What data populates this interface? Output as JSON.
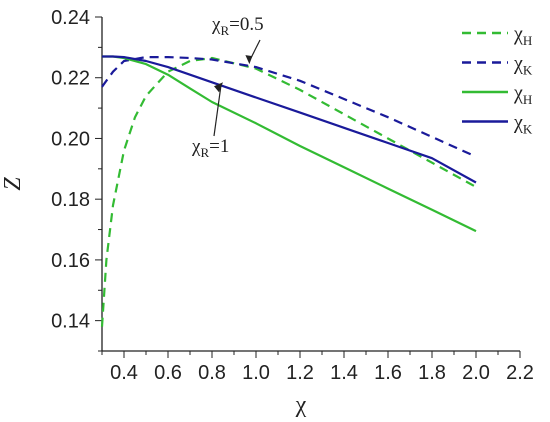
{
  "chart_data": {
    "type": "line",
    "xlabel": "χ",
    "ylabel": "Z",
    "xlim": [
      0.3,
      2.2
    ],
    "ylim": [
      0.13,
      0.24
    ],
    "x_ticks": [
      "0.4",
      "0.6",
      "0.8",
      "1.0",
      "1.2",
      "1.4",
      "1.6",
      "1.8",
      "2.0",
      "2.2"
    ],
    "x_tick_values": [
      0.4,
      0.6,
      0.8,
      1.0,
      1.2,
      1.4,
      1.6,
      1.8,
      2.0,
      2.2
    ],
    "y_ticks": [
      "0.14",
      "0.16",
      "0.18",
      "0.20",
      "0.22",
      "0.24"
    ],
    "y_tick_values": [
      0.14,
      0.16,
      0.18,
      0.2,
      0.22,
      0.24
    ],
    "grid": false,
    "legend_position": "top-right",
    "series": [
      {
        "name": "χH",
        "name_main": "χ",
        "name_sub": "H",
        "color": "#33bb33",
        "dash": true,
        "x": [
          0.3,
          0.32,
          0.35,
          0.4,
          0.45,
          0.5,
          0.6,
          0.7,
          0.8,
          1.0,
          1.2,
          1.4,
          1.6,
          1.8,
          2.0
        ],
        "y": [
          0.138,
          0.16,
          0.178,
          0.196,
          0.207,
          0.214,
          0.222,
          0.2255,
          0.2265,
          0.223,
          0.216,
          0.208,
          0.2,
          0.192,
          0.184
        ]
      },
      {
        "name": "χK",
        "name_main": "χ",
        "name_sub": "K",
        "color": "#1a1a9a",
        "dash": true,
        "x": [
          0.3,
          0.35,
          0.4,
          0.5,
          0.6,
          0.7,
          0.8,
          1.0,
          1.2,
          1.4,
          1.6,
          1.8,
          2.0
        ],
        "y": [
          0.217,
          0.222,
          0.2255,
          0.2268,
          0.2268,
          0.2265,
          0.226,
          0.2235,
          0.219,
          0.213,
          0.207,
          0.2005,
          0.194
        ]
      },
      {
        "name": "χH",
        "name_main": "χ",
        "name_sub": "H",
        "color": "#33bb33",
        "dash": false,
        "x": [
          0.3,
          0.35,
          0.4,
          0.5,
          0.6,
          0.7,
          0.8,
          1.0,
          1.2,
          1.4,
          1.6,
          1.8,
          2.0
        ],
        "y": [
          0.227,
          0.227,
          0.2265,
          0.2245,
          0.221,
          0.2165,
          0.212,
          0.205,
          0.1975,
          0.1905,
          0.1835,
          0.1765,
          0.1695
        ]
      },
      {
        "name": "χK",
        "name_main": "χ",
        "name_sub": "K",
        "color": "#1a1a9a",
        "dash": false,
        "x": [
          0.3,
          0.35,
          0.4,
          0.5,
          0.6,
          0.7,
          0.8,
          1.0,
          1.2,
          1.4,
          1.6,
          1.8,
          2.0
        ],
        "y": [
          0.227,
          0.227,
          0.2268,
          0.2255,
          0.2235,
          0.221,
          0.2185,
          0.2135,
          0.2085,
          0.2035,
          0.1985,
          0.1935,
          0.1855
        ]
      }
    ],
    "annotations": [
      {
        "text": "χR=0.5",
        "main": "χ",
        "sub": "R",
        "rest": "=0.5",
        "arrow_to": [
          0.97,
          0.2248
        ]
      },
      {
        "text": "χR=1",
        "main": "χ",
        "sub": "R",
        "rest": "=1",
        "arrow_to": [
          0.85,
          0.2185
        ]
      }
    ]
  }
}
